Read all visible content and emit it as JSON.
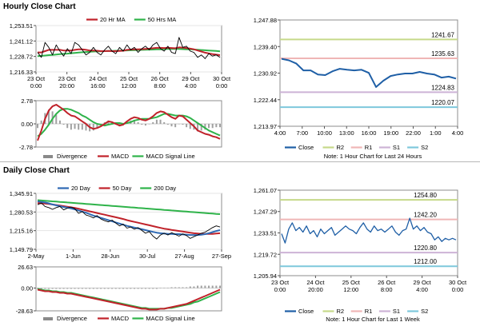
{
  "sections": {
    "hourly_title": "Hourly Close Chart",
    "daily_title": "Daily Close Chart"
  },
  "colors": {
    "price": "#000000",
    "ma_short": "#c0222a",
    "ma_long": "#2fb34a",
    "macd": "#c0222a",
    "signal": "#2fb34a",
    "histogram": "#a0a0a0",
    "close": "#1f5fa6",
    "r2": "#c6d98a",
    "r1": "#efb6b6",
    "s1": "#cdb3d6",
    "s2": "#7ec8dc",
    "ma20_daily": "#2e69b3",
    "ma50_daily": "#c0222a",
    "ma200_daily": "#2fb34a"
  },
  "chart_data": [
    {
      "id": "hourly_price",
      "type": "line",
      "legend": [
        "20 Hr MA",
        "50 Hrs MA"
      ],
      "y_ticks": [
        "1,253.51",
        "1,241.12",
        "1,228.72",
        "1,216.33"
      ],
      "y_values": [
        1253.51,
        1241.12,
        1228.72,
        1216.33
      ],
      "ylim": [
        1216.33,
        1253.51
      ],
      "x_ticks": [
        [
          "23 Oct",
          "0:00"
        ],
        [
          "23 Oct",
          "20:00"
        ],
        [
          "24 Oct",
          "16:00"
        ],
        [
          "25 Oct",
          "12:00"
        ],
        [
          "26 Oct",
          "8:00"
        ],
        [
          "29 Oct",
          "4:00"
        ],
        [
          "30 Oct",
          "0:00"
        ]
      ],
      "series": [
        {
          "role": "price",
          "values": [
            1232,
            1228,
            1240,
            1236,
            1230,
            1238,
            1233,
            1229,
            1235,
            1231,
            1240,
            1238,
            1234,
            1230,
            1232,
            1236,
            1232,
            1230,
            1234,
            1237,
            1233,
            1231,
            1236,
            1233,
            1238,
            1234,
            1236,
            1232,
            1235,
            1237,
            1234,
            1238,
            1240,
            1235,
            1233,
            1237,
            1232,
            1231,
            1244,
            1236,
            1237,
            1233,
            1232,
            1228,
            1230,
            1227,
            1231,
            1229,
            1230,
            1228
          ]
        },
        {
          "role": "ma_short",
          "name": "20 Hr MA",
          "values": [
            1232,
            1232,
            1233,
            1234,
            1234,
            1234,
            1234,
            1233.5,
            1233.5,
            1233.5,
            1234,
            1234.5,
            1234.5,
            1234,
            1233.5,
            1233.5,
            1233.3,
            1233,
            1233,
            1233.2,
            1233,
            1233,
            1233.2,
            1233.3,
            1234,
            1234.3,
            1234.5,
            1234.5,
            1234.6,
            1234.8,
            1235,
            1235.3,
            1235.6,
            1235.6,
            1235.5,
            1235.7,
            1235.5,
            1235.3,
            1236,
            1235.8,
            1235.5,
            1235,
            1234.5,
            1233.5,
            1232.7,
            1231.8,
            1231.2,
            1230.6,
            1230.2,
            1229.8
          ]
        },
        {
          "role": "ma_long",
          "name": "50 Hrs MA",
          "values": [
            1229,
            1229.2,
            1229.5,
            1229.8,
            1230,
            1230.3,
            1230.6,
            1230.8,
            1231,
            1231.3,
            1231.6,
            1231.9,
            1232.1,
            1232.3,
            1232.5,
            1232.7,
            1232.8,
            1232.9,
            1233,
            1233.1,
            1233.2,
            1233.3,
            1233.4,
            1233.5,
            1233.6,
            1233.7,
            1233.8,
            1233.9,
            1234,
            1234.1,
            1234.2,
            1234.3,
            1234.4,
            1234.5,
            1234.6,
            1234.7,
            1234.7,
            1234.7,
            1234.7,
            1234.6,
            1234.5,
            1234.4,
            1234.3,
            1234.1,
            1233.9,
            1233.7,
            1233.5,
            1233.3,
            1233.1,
            1232.9
          ]
        }
      ]
    },
    {
      "id": "hourly_macd",
      "type": "line",
      "legend": [
        "Divergence",
        "MACD",
        "MACD Signal Line"
      ],
      "y_ticks": [
        "2.78",
        "0.00",
        "-2.78"
      ],
      "y_values": [
        2.78,
        0,
        -2.78
      ],
      "ylim": [
        -2.78,
        2.78
      ],
      "series": [
        {
          "role": "macd",
          "name": "MACD",
          "values": [
            -2.0,
            -0.8,
            0.6,
            1.6,
            2.1,
            2.3,
            2.0,
            1.7,
            1.3,
            1.0,
            0.9,
            0.6,
            0.3,
            0.0,
            -0.4,
            -0.6,
            -0.5,
            -0.3,
            0.0,
            0.3,
            0.2,
            0.0,
            -0.2,
            -0.1,
            0.3,
            0.6,
            0.8,
            0.7,
            0.5,
            0.4,
            0.6,
            0.9,
            1.3,
            1.5,
            1.4,
            1.1,
            0.8,
            0.6,
            1.0,
            0.9,
            0.5,
            0.1,
            -0.3,
            -0.8,
            -1.0,
            -1.2,
            -1.3,
            -1.5,
            -1.6,
            -1.8
          ]
        },
        {
          "role": "signal",
          "name": "MACD Signal Line",
          "values": [
            -1.5,
            -1.2,
            -0.7,
            -0.1,
            0.6,
            1.2,
            1.6,
            1.8,
            1.8,
            1.7,
            1.5,
            1.3,
            1.0,
            0.8,
            0.5,
            0.2,
            0.0,
            -0.1,
            -0.2,
            -0.1,
            0.0,
            0.1,
            0.1,
            0.0,
            0.1,
            0.2,
            0.4,
            0.5,
            0.6,
            0.6,
            0.6,
            0.7,
            0.8,
            1.0,
            1.2,
            1.2,
            1.1,
            1.0,
            1.0,
            1.0,
            0.9,
            0.7,
            0.4,
            0.1,
            -0.2,
            -0.5,
            -0.8,
            -1.0,
            -1.2,
            -1.4
          ]
        }
      ]
    },
    {
      "id": "hourly_levels",
      "type": "line",
      "legend": [
        "Close",
        "R2",
        "R1",
        "S1",
        "S2"
      ],
      "note": "Note: 1 Hour Chart for Last 24 Hours",
      "y_ticks": [
        "1,247.88",
        "1,239.40",
        "1,230.92",
        "1,222.44",
        "1,213.97"
      ],
      "y_values": [
        1247.88,
        1239.4,
        1230.92,
        1222.44,
        1213.97
      ],
      "ylim": [
        1213.97,
        1247.88
      ],
      "x_ticks": [
        "4:00",
        "7:00",
        "10:00",
        "13:00",
        "16:00",
        "19:00",
        "22:00",
        "1:00",
        "4:00"
      ],
      "levels": [
        {
          "role": "r2",
          "label": "1241.67",
          "value": 1241.67
        },
        {
          "role": "r1",
          "label": "1235.63",
          "value": 1235.63
        },
        {
          "role": "s1",
          "label": "1224.83",
          "value": 1224.83
        },
        {
          "role": "s2",
          "label": "1220.07",
          "value": 1220.07
        }
      ],
      "series": [
        {
          "role": "close",
          "name": "Close",
          "x": [
            0,
            1,
            2,
            3,
            4,
            5,
            6,
            7,
            8,
            9,
            10,
            11,
            12,
            13,
            14,
            15,
            16,
            17,
            18,
            19,
            20,
            21,
            22,
            23,
            24
          ],
          "values": [
            1235.5,
            1235.0,
            1234.0,
            1231.8,
            1231.8,
            1230.5,
            1230.3,
            1231.5,
            1232.3,
            1232.0,
            1231.8,
            1232.0,
            1231.0,
            1226.5,
            1228.5,
            1230.0,
            1230.5,
            1230.8,
            1230.8,
            1231.3,
            1230.8,
            1230.5,
            1229.5,
            1229.8,
            1229.2
          ]
        }
      ]
    },
    {
      "id": "daily_price",
      "type": "line",
      "legend": [
        "20 Day",
        "50 Day",
        "200 Day"
      ],
      "y_ticks": [
        "1,345.91",
        "1,280.53",
        "1,215.16",
        "1,149.79"
      ],
      "y_values": [
        1345.91,
        1280.53,
        1215.16,
        1149.79
      ],
      "ylim": [
        1149.79,
        1345.91
      ],
      "x_ticks": [
        "2-May",
        "1-Jun",
        "28-Jun",
        "30-Jul",
        "27-Aug",
        "27-Sep"
      ],
      "series": [
        {
          "role": "price",
          "values": [
            1306,
            1312,
            1300,
            1296,
            1290,
            1296,
            1300,
            1288,
            1294,
            1298,
            1292,
            1276,
            1282,
            1270,
            1266,
            1260,
            1268,
            1256,
            1250,
            1246,
            1252,
            1242,
            1232,
            1238,
            1224,
            1228,
            1220,
            1226,
            1216,
            1206,
            1212,
            1196,
            1186,
            1200,
            1206,
            1200,
            1208,
            1202,
            1196,
            1204,
            1198,
            1188,
            1194,
            1200,
            1206,
            1210,
            1218,
            1226,
            1232,
            1228
          ]
        },
        {
          "role": "ma_short",
          "name": "20 Day",
          "values": [
            1318,
            1316,
            1314,
            1311,
            1307,
            1304,
            1301,
            1298,
            1296,
            1293,
            1290,
            1286,
            1282,
            1278,
            1273,
            1268,
            1264,
            1260,
            1256,
            1252,
            1248,
            1244,
            1240,
            1236,
            1232,
            1229,
            1226,
            1223,
            1220,
            1217,
            1214,
            1211,
            1208,
            1206,
            1205,
            1204,
            1204,
            1203,
            1203,
            1202,
            1201,
            1200,
            1200,
            1200,
            1201,
            1203,
            1206,
            1210,
            1214,
            1217
          ]
        },
        {
          "role": "ma50",
          "name": "50 Day",
          "values": [
            1312,
            1311,
            1310,
            1309,
            1307,
            1305,
            1303,
            1301,
            1299,
            1297,
            1295,
            1292,
            1289,
            1286,
            1283,
            1280,
            1277,
            1274,
            1271,
            1268,
            1265,
            1262,
            1259,
            1256,
            1252,
            1249,
            1246,
            1243,
            1240,
            1237,
            1234,
            1231,
            1228,
            1225,
            1222,
            1220,
            1218,
            1216,
            1214,
            1212,
            1210,
            1208,
            1206,
            1205,
            1204,
            1204,
            1204,
            1204,
            1205,
            1206
          ]
        },
        {
          "role": "ma200",
          "name": "200 Day",
          "values": [
            1322,
            1321,
            1320,
            1319,
            1318,
            1317,
            1316,
            1315,
            1314,
            1313,
            1312,
            1311,
            1310,
            1309,
            1308,
            1307,
            1306,
            1305,
            1304,
            1303,
            1302,
            1301,
            1300,
            1299,
            1298,
            1297,
            1296,
            1295,
            1294,
            1293,
            1292,
            1291,
            1290,
            1289,
            1288,
            1287,
            1286,
            1285,
            1284,
            1283,
            1282,
            1281,
            1280,
            1279,
            1278,
            1277,
            1276,
            1275,
            1274,
            1273
          ]
        }
      ]
    },
    {
      "id": "daily_macd",
      "type": "line",
      "legend": [
        "Divergence",
        "MACD",
        "MACD Signal Line"
      ],
      "y_ticks": [
        "26.63",
        "0.00",
        "-28.63"
      ],
      "y_values": [
        26.63,
        0,
        -28.63
      ],
      "ylim": [
        -28.63,
        26.63
      ],
      "series": [
        {
          "role": "macd",
          "name": "MACD",
          "values": [
            -2,
            -3,
            -4,
            -4,
            -5,
            -5,
            -6,
            -6,
            -7,
            -7,
            -8,
            -9,
            -10,
            -11,
            -12,
            -13,
            -14,
            -15,
            -16,
            -17,
            -18,
            -19,
            -20,
            -21,
            -22,
            -23,
            -24,
            -25,
            -26,
            -26,
            -27,
            -27,
            -27,
            -26,
            -26,
            -25,
            -24,
            -23,
            -22,
            -21,
            -20,
            -18,
            -16,
            -14,
            -12,
            -10,
            -8,
            -6,
            -4,
            -2
          ]
        },
        {
          "role": "signal",
          "name": "MACD Signal Line",
          "values": [
            -1,
            -2,
            -3,
            -3,
            -4,
            -4,
            -5,
            -5,
            -6,
            -6,
            -7,
            -8,
            -9,
            -10,
            -11,
            -12,
            -13,
            -14,
            -15,
            -16,
            -17,
            -18,
            -19,
            -20,
            -21,
            -22,
            -23,
            -24,
            -25,
            -25,
            -26,
            -26,
            -26,
            -26,
            -26,
            -25,
            -25,
            -24,
            -23,
            -22,
            -21,
            -20,
            -18,
            -17,
            -15,
            -13,
            -11,
            -9,
            -7,
            -5
          ]
        }
      ]
    },
    {
      "id": "daily_levels",
      "type": "line",
      "legend": [
        "Close",
        "R2",
        "R1",
        "S1",
        "S2"
      ],
      "note": "Note: 1 Hour Chart for Last 1 Week",
      "y_ticks": [
        "1,261.07",
        "1,247.29",
        "1,233.51",
        "1,219.72",
        "1,205.94"
      ],
      "y_values": [
        1261.07,
        1247.29,
        1233.51,
        1219.72,
        1205.94
      ],
      "ylim": [
        1205.94,
        1261.07
      ],
      "x_ticks": [
        [
          "23 Oct",
          "0:00"
        ],
        [
          "24 Oct",
          "20:00"
        ],
        [
          "25 Oct",
          "12:00"
        ],
        [
          "26 Oct",
          "8:00"
        ],
        [
          "29 Oct",
          "4:00"
        ],
        [
          "30 Oct",
          "0:00"
        ]
      ],
      "levels": [
        {
          "role": "r2",
          "label": "1254.80",
          "value": 1254.8
        },
        {
          "role": "r1",
          "label": "1242.20",
          "value": 1242.2
        },
        {
          "role": "s1",
          "label": "1220.80",
          "value": 1220.8
        },
        {
          "role": "s2",
          "label": "1212.00",
          "value": 1212.0
        }
      ],
      "series": [
        {
          "role": "close",
          "name": "Close",
          "values": [
            1233,
            1227,
            1236,
            1240,
            1235,
            1237,
            1234,
            1238,
            1233,
            1235,
            1231,
            1236,
            1233,
            1235,
            1237,
            1232,
            1234,
            1236,
            1238,
            1236,
            1235,
            1233,
            1237,
            1240,
            1236,
            1234,
            1238,
            1235,
            1236,
            1234,
            1236,
            1238,
            1234,
            1232,
            1235,
            1236,
            1243,
            1236,
            1238,
            1235,
            1237,
            1234,
            1233,
            1229,
            1231,
            1228,
            1230,
            1229,
            1230,
            1229
          ]
        }
      ]
    }
  ]
}
